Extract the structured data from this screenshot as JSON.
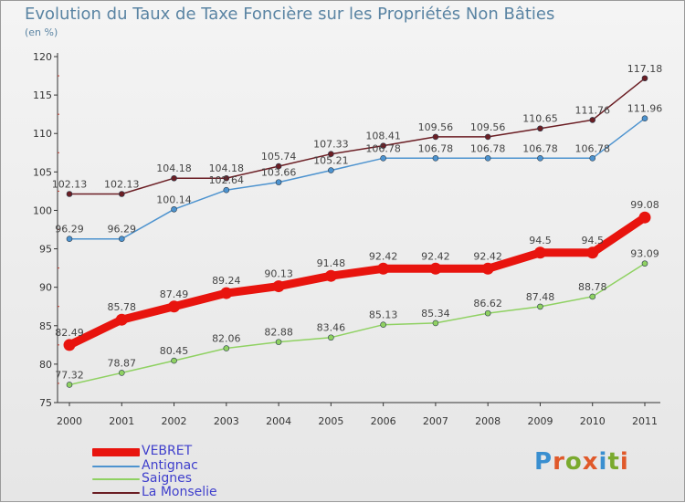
{
  "title": "Evolution du Taux de Taxe Foncière sur les Propriétés Non Bâties",
  "unit_label": "(en %)",
  "logo": {
    "text": "Proxiti",
    "letter_colors": [
      "#3a8fd0",
      "#e0592a",
      "#7aaa2e",
      "#e0592a",
      "#3a8fd0",
      "#7aaa2e",
      "#e0592a"
    ]
  },
  "chart_data": {
    "type": "line",
    "x": [
      "2000",
      "2001",
      "2002",
      "2003",
      "2004",
      "2005",
      "2006",
      "2007",
      "2008",
      "2009",
      "2010",
      "2011"
    ],
    "ylim": [
      75,
      120
    ],
    "yticks": [
      "75",
      "80",
      "85",
      "90",
      "95",
      "100",
      "105",
      "110",
      "115",
      "120"
    ],
    "grid": false,
    "legend_position": "bottom-left",
    "series": [
      {
        "name": "La Monselie",
        "color": "#6b1e24",
        "values": [
          102.13,
          102.13,
          104.18,
          104.18,
          105.74,
          107.33,
          108.41,
          109.56,
          109.56,
          110.65,
          111.76,
          117.18
        ],
        "labels": [
          "102.13",
          "102.13",
          "104.18",
          "104.18",
          "105.74",
          "107.33",
          "108.41",
          "109.56",
          "109.56",
          "110.65",
          "111.76",
          "117.18"
        ]
      },
      {
        "name": "Antignac",
        "color": "#4d93cf",
        "values": [
          96.29,
          96.29,
          100.14,
          102.64,
          103.66,
          105.21,
          106.78,
          106.78,
          106.78,
          106.78,
          106.78,
          111.96
        ],
        "labels": [
          "96.29",
          "96.29",
          "100.14",
          "102.64",
          "103.66",
          "105.21",
          "106.78",
          "106.78",
          "106.78",
          "106.78",
          "106.78",
          "111.96"
        ]
      },
      {
        "name": "VEBRET",
        "color": "#e8140e",
        "values": [
          82.49,
          85.78,
          87.49,
          89.24,
          90.13,
          91.48,
          92.42,
          92.42,
          92.42,
          94.5,
          94.5,
          99.08
        ],
        "labels": [
          "82.49",
          "85.78",
          "87.49",
          "89.24",
          "90.13",
          "91.48",
          "92.42",
          "92.42",
          "92.42",
          "94.5",
          "94.5",
          "99.08"
        ]
      },
      {
        "name": "Saignes",
        "color": "#8fd162",
        "values": [
          77.32,
          78.87,
          80.45,
          82.06,
          82.88,
          83.46,
          85.13,
          85.34,
          86.62,
          87.48,
          88.78,
          93.09
        ],
        "labels": [
          "77.32",
          "78.87",
          "80.45",
          "82.06",
          "82.88",
          "83.46",
          "85.13",
          "85.34",
          "86.62",
          "87.48",
          "88.78",
          "93.09"
        ]
      }
    ],
    "legend_order": [
      "VEBRET",
      "Antignac",
      "Saignes",
      "La Monselie"
    ]
  }
}
